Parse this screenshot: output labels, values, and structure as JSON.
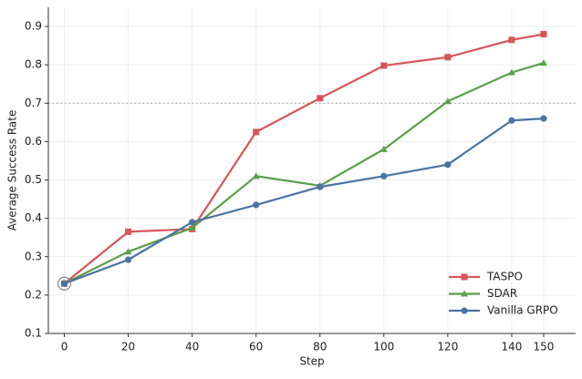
{
  "chart_data": {
    "type": "line",
    "xlabel": "Step",
    "ylabel": "Average Success Rate",
    "x": [
      0,
      20,
      40,
      60,
      80,
      100,
      120,
      140,
      150
    ],
    "series": [
      {
        "name": "TASPO",
        "color": "#d6555a",
        "marker": "square",
        "values": [
          0.23,
          0.365,
          0.372,
          0.625,
          0.713,
          0.798,
          0.82,
          0.865,
          0.88
        ]
      },
      {
        "name": "SDAR",
        "color": "#5c9e4c",
        "marker": "triangle",
        "values": [
          0.23,
          0.313,
          0.375,
          0.51,
          0.485,
          0.58,
          0.705,
          0.78,
          0.805
        ]
      },
      {
        "name": "Vanilla GRPO",
        "color": "#4b73a2",
        "marker": "circle",
        "values": [
          0.23,
          0.292,
          0.39,
          0.435,
          0.482,
          0.51,
          0.54,
          0.655,
          0.66
        ]
      }
    ],
    "xlim": [
      -5,
      160
    ],
    "ylim": [
      0.1,
      0.95
    ],
    "xticks": [
      0,
      20,
      40,
      60,
      80,
      100,
      120,
      140,
      150
    ],
    "yticks": [
      0.1,
      0.2,
      0.3,
      0.4,
      0.5,
      0.6,
      0.7,
      0.8,
      0.9
    ],
    "hline": 0.7,
    "grid": true,
    "legend": "lower right"
  }
}
